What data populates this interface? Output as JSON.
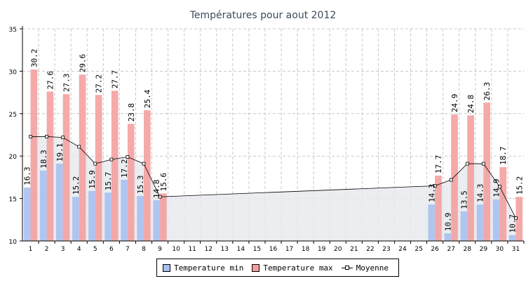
{
  "chart_data": {
    "type": "bar",
    "title": "Températures pour aout 2012",
    "xlabel": "",
    "ylabel": "",
    "ylim": [
      10,
      35
    ],
    "yticks": [
      10,
      15,
      20,
      25,
      30,
      35
    ],
    "grid": true,
    "legend_placement": "bottom",
    "categories": [
      "1",
      "2",
      "3",
      "4",
      "5",
      "6",
      "7",
      "8",
      "9",
      "10",
      "11",
      "12",
      "13",
      "14",
      "15",
      "16",
      "17",
      "18",
      "19",
      "20",
      "21",
      "22",
      "23",
      "24",
      "25",
      "26",
      "27",
      "28",
      "29",
      "30",
      "31"
    ],
    "series": [
      {
        "name": "Temperature min",
        "color": "#a8c0f0",
        "values": [
          16.3,
          18.3,
          19.1,
          15.2,
          15.9,
          15.7,
          17.2,
          15.3,
          14.8,
          null,
          null,
          null,
          null,
          null,
          null,
          null,
          null,
          null,
          null,
          null,
          null,
          null,
          null,
          null,
          null,
          14.3,
          10.9,
          13.5,
          14.3,
          14.9,
          10.7
        ],
        "labels": [
          "16.3",
          "18.3",
          "19.1",
          "15.2",
          "15.9",
          "15.7",
          "17.2",
          "15.3",
          "14.8",
          "",
          "",
          "",
          "",
          "",
          "",
          "",
          "",
          "",
          "",
          "",
          "",
          "",
          "",
          "",
          "",
          "14.3",
          "10.9",
          "13.5",
          "14.3",
          "14.9",
          "10.7"
        ]
      },
      {
        "name": "Temperature max",
        "color": "#f4a0a0",
        "values": [
          30.2,
          27.6,
          27.3,
          29.6,
          27.2,
          27.7,
          23.8,
          25.4,
          15.6,
          null,
          null,
          null,
          null,
          null,
          null,
          null,
          null,
          null,
          null,
          null,
          null,
          null,
          null,
          null,
          null,
          17.7,
          24.9,
          24.8,
          26.3,
          18.7,
          15.2
        ],
        "labels": [
          "30.2",
          "27.6",
          "27.3",
          "29.6",
          "27.2",
          "27.7",
          "23.8",
          "25.4",
          "15.6",
          "",
          "",
          "",
          "",
          "",
          "",
          "",
          "",
          "",
          "",
          "",
          "",
          "",
          "",
          "",
          "",
          "17.7",
          "24.9",
          "24.8",
          "26.3",
          "18.7",
          "15.2"
        ]
      },
      {
        "name": "Moyenne",
        "color": "#000000",
        "values": [
          22.3,
          22.3,
          22.2,
          21.1,
          19.1,
          19.6,
          19.9,
          19.1,
          15.2,
          null,
          null,
          null,
          null,
          null,
          null,
          null,
          null,
          null,
          null,
          null,
          null,
          null,
          null,
          null,
          null,
          16.5,
          17.2,
          19.1,
          19.1,
          16.4,
          12.7
        ]
      }
    ],
    "colors": {
      "axis": "#000000",
      "grid": "#c8c8c8",
      "area": "#e6e8ee"
    }
  }
}
